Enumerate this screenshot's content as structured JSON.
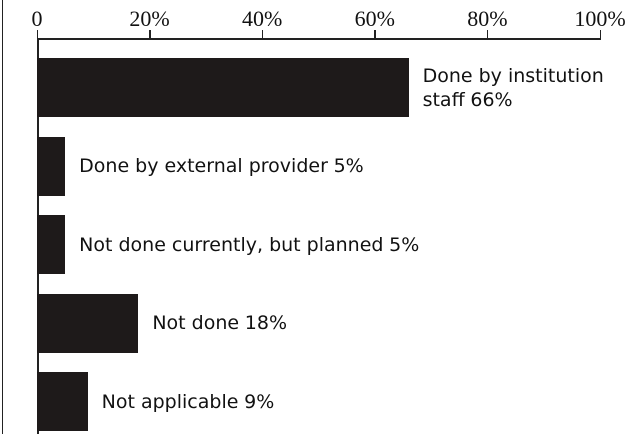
{
  "chart_data": {
    "type": "bar",
    "orientation": "horizontal",
    "categories": [
      "Done by institution staff",
      "Done by external provider",
      "Not done currently, but planned",
      "Not done",
      "Not applicable"
    ],
    "values": [
      66,
      5,
      5,
      18,
      9
    ],
    "value_labels": [
      "66%",
      "5%",
      "5%",
      "18%",
      "9%"
    ],
    "color": "#1e1a1a",
    "xlim": [
      0,
      100
    ],
    "xticks": [
      0,
      {
        "value": 20,
        "label": "20%"
      },
      {
        "value": 40,
        "label": "40%"
      },
      {
        "value": 60,
        "label": "60%"
      },
      {
        "value": 80,
        "label": "80%"
      },
      {
        "value": 100,
        "label": "100%"
      }
    ]
  }
}
